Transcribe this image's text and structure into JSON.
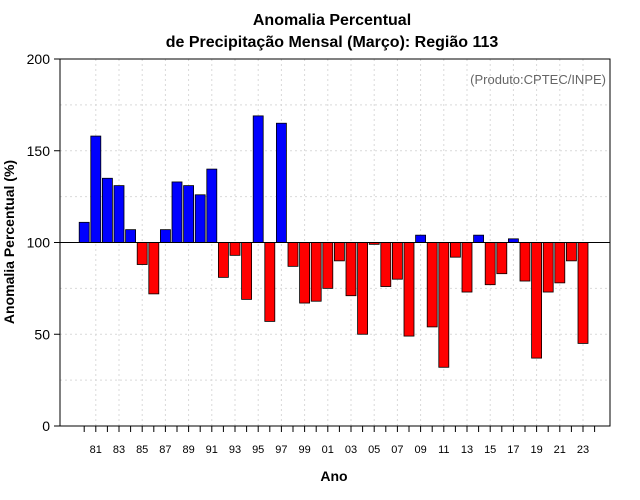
{
  "chart_data": {
    "type": "bar",
    "title": [
      "Anomalia Percentual",
      "de Precipitação Mensal (Março): Região 113"
    ],
    "xlabel": "Ano",
    "ylabel": "Anomalia Percentual (%)",
    "credit": "(Produto:CPTEC/INPE)",
    "baseline": 100,
    "ylim": [
      0,
      200
    ],
    "yticks": [
      "0",
      "50",
      "100",
      "150",
      "200"
    ],
    "grid": true,
    "colors": {
      "above": "#0000ff",
      "below": "#ff0000",
      "grid": "#d9d9d9"
    },
    "categories": [
      "80",
      "81",
      "82",
      "83",
      "84",
      "85",
      "86",
      "87",
      "88",
      "89",
      "90",
      "91",
      "92",
      "93",
      "94",
      "95",
      "96",
      "97",
      "98",
      "99",
      "00",
      "01",
      "02",
      "03",
      "04",
      "05",
      "06",
      "07",
      "08",
      "09",
      "10",
      "11",
      "12",
      "13",
      "14",
      "15",
      "16",
      "17",
      "18",
      "19",
      "20",
      "21",
      "22",
      "23",
      "24"
    ],
    "xtick_labels": [
      "81",
      "83",
      "85",
      "87",
      "89",
      "91",
      "93",
      "95",
      "97",
      "99",
      "01",
      "03",
      "05",
      "07",
      "09",
      "11",
      "13",
      "15",
      "17",
      "19",
      "21",
      "23"
    ],
    "values": [
      111,
      158,
      135,
      131,
      107,
      88,
      72,
      107,
      133,
      131,
      126,
      140,
      81,
      93,
      69,
      169,
      57,
      165,
      87,
      67,
      68,
      75,
      90,
      71,
      50,
      99,
      76,
      80,
      49,
      104,
      54,
      32,
      92,
      73,
      104,
      77,
      83,
      102,
      79,
      37,
      73,
      78,
      90,
      45,
      100
    ]
  }
}
